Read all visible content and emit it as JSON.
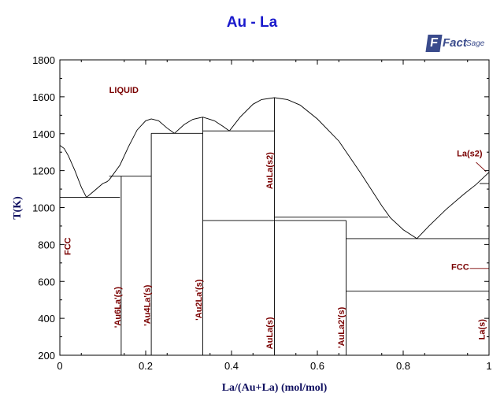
{
  "brand": {
    "mark": "F",
    "word1": "Fact",
    "word2": "Sage"
  },
  "chart_data": {
    "type": "line",
    "title": "Au - La",
    "xlabel": "La/(Au+La) (mol/mol)",
    "ylabel": "T(K)",
    "xlim": [
      0,
      1
    ],
    "ylim": [
      200,
      1800
    ],
    "xticks": [
      "0",
      "0.2",
      "0.4",
      "0.6",
      "0.8",
      "1"
    ],
    "yticks": [
      "200",
      "400",
      "600",
      "800",
      "1000",
      "1200",
      "1400",
      "1600",
      "1800"
    ],
    "series": [
      {
        "values": [
          [
            0,
            1337
          ],
          [
            0.01,
            1320
          ],
          [
            0.02,
            1280
          ],
          [
            0.035,
            1200
          ],
          [
            0.05,
            1110
          ],
          [
            0.062,
            1055
          ],
          [
            0.08,
            1090
          ],
          [
            0.1,
            1130
          ],
          [
            0.11,
            1140
          ],
          [
            0.115,
            1150
          ]
        ]
      },
      {
        "values": [
          [
            0.115,
            1150
          ],
          [
            0.14,
            1230
          ],
          [
            0.16,
            1330
          ],
          [
            0.18,
            1420
          ],
          [
            0.2,
            1470
          ],
          [
            0.213,
            1480
          ],
          [
            0.23,
            1470
          ],
          [
            0.25,
            1430
          ],
          [
            0.267,
            1402
          ]
        ]
      },
      {
        "values": [
          [
            0.267,
            1402
          ],
          [
            0.29,
            1450
          ],
          [
            0.31,
            1478
          ],
          [
            0.333,
            1490
          ],
          [
            0.36,
            1470
          ],
          [
            0.38,
            1440
          ],
          [
            0.395,
            1415
          ]
        ]
      },
      {
        "values": [
          [
            0.395,
            1415
          ],
          [
            0.42,
            1490
          ],
          [
            0.45,
            1560
          ],
          [
            0.47,
            1585
          ],
          [
            0.5,
            1595
          ],
          [
            0.53,
            1585
          ],
          [
            0.56,
            1555
          ],
          [
            0.6,
            1480
          ],
          [
            0.65,
            1360
          ],
          [
            0.7,
            1190
          ],
          [
            0.75,
            1010
          ],
          [
            0.77,
            945
          ],
          [
            0.8,
            880
          ],
          [
            0.832,
            832
          ]
        ]
      },
      {
        "values": [
          [
            0.832,
            832
          ],
          [
            0.86,
            900
          ],
          [
            0.9,
            990
          ],
          [
            0.94,
            1070
          ],
          [
            0.97,
            1125
          ],
          [
            1,
            1191
          ]
        ]
      },
      {
        "values": [
          [
            0,
            1055
          ],
          [
            0.14,
            1055
          ]
        ]
      },
      {
        "values": [
          [
            0.115,
            1170
          ],
          [
            0.213,
            1170
          ]
        ]
      },
      {
        "values": [
          [
            0.213,
            1402
          ],
          [
            0.333,
            1402
          ]
        ]
      },
      {
        "values": [
          [
            0.333,
            1415
          ],
          [
            0.5,
            1415
          ]
        ]
      },
      {
        "values": [
          [
            0.333,
            930
          ],
          [
            0.5,
            930
          ]
        ]
      },
      {
        "values": [
          [
            0.5,
            948
          ],
          [
            0.765,
            948
          ]
        ]
      },
      {
        "values": [
          [
            0.5,
            930
          ],
          [
            0.667,
            930
          ]
        ]
      },
      {
        "values": [
          [
            0.667,
            832
          ],
          [
            1,
            832
          ]
        ]
      },
      {
        "values": [
          [
            0.667,
            547
          ],
          [
            1,
            547
          ]
        ]
      },
      {
        "values": [
          [
            0.978,
            1130
          ],
          [
            1,
            1130
          ]
        ]
      },
      {
        "values": [
          [
            0.143,
            200
          ],
          [
            0.143,
            1170
          ]
        ]
      },
      {
        "values": [
          [
            0.213,
            200
          ],
          [
            0.213,
            1402
          ]
        ]
      },
      {
        "values": [
          [
            0.333,
            200
          ],
          [
            0.333,
            1490
          ]
        ]
      },
      {
        "values": [
          [
            0.5,
            200
          ],
          [
            0.5,
            1595
          ]
        ]
      },
      {
        "values": [
          [
            0.667,
            200
          ],
          [
            0.667,
            930
          ]
        ]
      },
      {
        "values": [
          [
            0.97,
            1245
          ],
          [
            0.993,
            1195
          ]
        ]
      },
      {
        "values": [
          [
            0.955,
            670
          ],
          [
            1,
            670
          ]
        ]
      }
    ],
    "annotations": [
      {
        "text": "LIQUID",
        "x": 0.115,
        "y": 1620,
        "rotate": 0
      },
      {
        "text": "FCC",
        "x": 0.019,
        "y": 790,
        "rotate": -90
      },
      {
        "text": "'Au6La'(s)",
        "x": 0.136,
        "y": 460,
        "rotate": -90
      },
      {
        "text": "'Au4La'(s)",
        "x": 0.205,
        "y": 470,
        "rotate": -90
      },
      {
        "text": "'Au2La'(s)",
        "x": 0.325,
        "y": 500,
        "rotate": -90
      },
      {
        "text": "AuLa(s2)",
        "x": 0.49,
        "y": 1200,
        "rotate": -90
      },
      {
        "text": "AuLa(s)",
        "x": 0.49,
        "y": 320,
        "rotate": -90
      },
      {
        "text": "'AuLa2'(s)",
        "x": 0.657,
        "y": 350,
        "rotate": -90
      },
      {
        "text": "La(s2)",
        "x": 0.925,
        "y": 1278,
        "rotate": 0
      },
      {
        "text": "FCC",
        "x": 0.912,
        "y": 662,
        "rotate": 0
      },
      {
        "text": "La(s)",
        "x": 0.985,
        "y": 340,
        "rotate": -90
      }
    ],
    "grid": false
  }
}
